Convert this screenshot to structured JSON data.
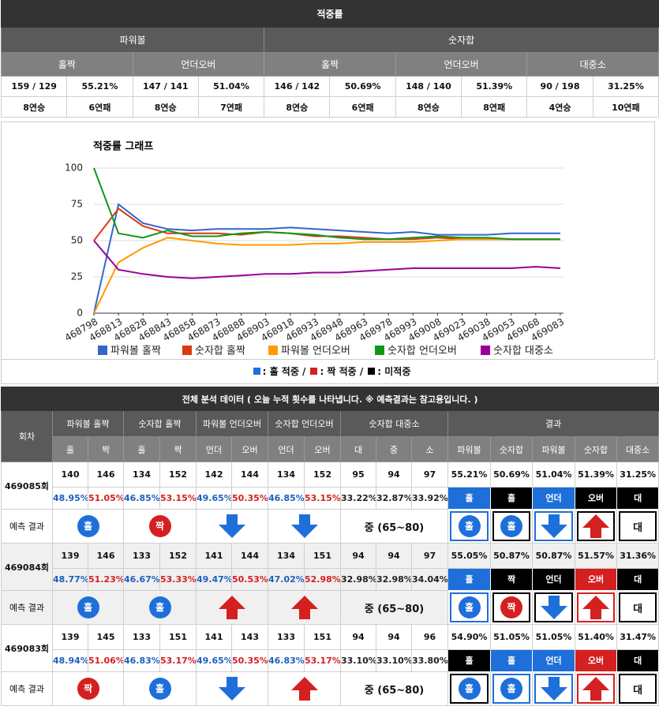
{
  "summary": {
    "title": "적중률",
    "groups": [
      "파워볼",
      "숫자합"
    ],
    "subgroups": [
      "홀짝",
      "언더오버",
      "홀짝",
      "언더오버",
      "대중소"
    ],
    "rows": [
      [
        "159 / 129",
        "55.21%",
        "147 / 141",
        "51.04%",
        "146 / 142",
        "50.69%",
        "148 / 140",
        "51.39%",
        "90 / 198",
        "31.25%"
      ],
      [
        "8연승",
        "6연패",
        "8연승",
        "7연패",
        "8연승",
        "6연패",
        "8연승",
        "8연패",
        "4연승",
        "10연패"
      ]
    ]
  },
  "chart_data": {
    "type": "line",
    "title": "적중률 그래프",
    "x": [
      468798,
      468813,
      468828,
      468843,
      468858,
      468873,
      468888,
      468903,
      468918,
      468933,
      468948,
      468963,
      468978,
      468993,
      469008,
      469023,
      469038,
      469053,
      469068,
      469083
    ],
    "xlim": [
      468798,
      469085
    ],
    "xticks": [
      468798,
      468813,
      468828,
      468843,
      468858,
      468873,
      468888,
      468903,
      468918,
      468933,
      468948,
      468963,
      468978,
      468993,
      469008,
      469023,
      469038,
      469053,
      469068,
      469083
    ],
    "ylim": [
      0,
      100
    ],
    "yticks": [
      0,
      25,
      50,
      75,
      100
    ],
    "grid": true,
    "series": [
      {
        "name": "파워볼 홀짝",
        "color": "#3366cc",
        "values": [
          0,
          75,
          62,
          58,
          57,
          58,
          58,
          58,
          59,
          58,
          57,
          56,
          55,
          56,
          54,
          54,
          54,
          55,
          55,
          55
        ]
      },
      {
        "name": "숫자합 홀짝",
        "color": "#dc3912",
        "values": [
          50,
          72,
          60,
          55,
          55,
          55,
          54,
          56,
          55,
          53,
          53,
          52,
          51,
          51,
          52,
          51,
          51,
          51,
          51,
          51
        ]
      },
      {
        "name": "파워볼 언더오버",
        "color": "#ff9900",
        "values": [
          0,
          35,
          45,
          52,
          50,
          48,
          47,
          47,
          47,
          48,
          48,
          49,
          49,
          49,
          50,
          51,
          51,
          51,
          51,
          51
        ]
      },
      {
        "name": "숫자합 언더오버",
        "color": "#109618",
        "values": [
          100,
          55,
          52,
          57,
          53,
          53,
          55,
          56,
          55,
          54,
          52,
          51,
          51,
          52,
          53,
          52,
          52,
          51,
          51,
          51
        ]
      },
      {
        "name": "숫자합 대중소",
        "color": "#990099",
        "values": [
          50,
          30,
          27,
          25,
          24,
          25,
          26,
          27,
          27,
          28,
          28,
          29,
          30,
          31,
          31,
          31,
          31,
          31,
          32,
          31
        ]
      }
    ]
  },
  "legend_key": [
    {
      "text": ": 홀 적중 /",
      "color": "#1e6fd9"
    },
    {
      "text": ": 짝 적중 /",
      "color": "#d42020"
    },
    {
      "text": ": 미적중",
      "color": "#000000"
    }
  ],
  "analysis": {
    "title": "전체 분석 데이터 ( 오늘 누적 횟수를 나타냅니다. ※ 예측결과는 참고용입니다. )",
    "round_header": "회차",
    "groups": [
      "파워볼 홀짝",
      "숫자합 홀짝",
      "파워볼 언더오버",
      "숫자합 언더오버",
      "숫자합 대중소"
    ],
    "subheaders": [
      "홀",
      "짝",
      "홀",
      "짝",
      "언더",
      "오버",
      "언더",
      "오버",
      "대",
      "중",
      "소"
    ],
    "result_header": "결과",
    "result_subheaders": [
      "파워볼",
      "숫자합",
      "파워볼",
      "숫자합",
      "대중소"
    ],
    "prediction_label": "예측 결과",
    "rounds": [
      {
        "round": "469085회",
        "counts": [
          140,
          146,
          134,
          152,
          142,
          144,
          134,
          152,
          95,
          94,
          97
        ],
        "percents": [
          "48.95%",
          "51.05%",
          "46.85%",
          "53.15%",
          "49.65%",
          "50.35%",
          "46.85%",
          "53.15%",
          "33.22%",
          "32.87%",
          "33.92%"
        ],
        "results": [
          "55.21%",
          "50.69%",
          "51.04%",
          "51.39%",
          "31.25%"
        ],
        "badges": [
          {
            "text": "홀",
            "color": "#1e6fd9"
          },
          {
            "text": "홀",
            "color": "#000000"
          },
          {
            "text": "언더",
            "color": "#1e6fd9"
          },
          {
            "text": "오버",
            "color": "#000000"
          },
          {
            "text": "대",
            "color": "#000000"
          }
        ],
        "predictions": [
          {
            "text": "홀",
            "color": "#1e6fd9"
          },
          {
            "text": "짝",
            "color": "#d42020"
          },
          {
            "icon": "down",
            "color": "#1e6fd9"
          },
          {
            "icon": "down",
            "color": "#1e6fd9"
          },
          {
            "text": "중 (65~80)"
          }
        ],
        "result_predictions": [
          {
            "text": "홀",
            "color": "#1e6fd9",
            "border": "#1e6fd9"
          },
          {
            "text": "홀",
            "color": "#1e6fd9",
            "border": "#000000"
          },
          {
            "icon": "down",
            "color": "#1e6fd9",
            "border": "#1e6fd9"
          },
          {
            "icon": "up",
            "color": "#d42020",
            "border": "#000000"
          },
          {
            "text": "대",
            "border": "#000000"
          }
        ]
      },
      {
        "round": "469084회",
        "counts": [
          139,
          146,
          133,
          152,
          141,
          144,
          134,
          151,
          94,
          94,
          97
        ],
        "percents": [
          "48.77%",
          "51.23%",
          "46.67%",
          "53.33%",
          "49.47%",
          "50.53%",
          "47.02%",
          "52.98%",
          "32.98%",
          "32.98%",
          "34.04%"
        ],
        "results": [
          "55.05%",
          "50.87%",
          "50.87%",
          "51.57%",
          "31.36%"
        ],
        "badges": [
          {
            "text": "홀",
            "color": "#1e6fd9"
          },
          {
            "text": "짝",
            "color": "#000000"
          },
          {
            "text": "언더",
            "color": "#000000"
          },
          {
            "text": "오버",
            "color": "#d42020"
          },
          {
            "text": "대",
            "color": "#000000"
          }
        ],
        "predictions": [
          {
            "text": "홀",
            "color": "#1e6fd9"
          },
          {
            "text": "홀",
            "color": "#1e6fd9"
          },
          {
            "icon": "up",
            "color": "#d42020"
          },
          {
            "icon": "up",
            "color": "#d42020"
          },
          {
            "text": "중 (65~80)"
          }
        ],
        "result_predictions": [
          {
            "text": "홀",
            "color": "#1e6fd9",
            "border": "#1e6fd9"
          },
          {
            "text": "짝",
            "color": "#d42020",
            "border": "#000000"
          },
          {
            "icon": "down",
            "color": "#1e6fd9",
            "border": "#000000"
          },
          {
            "icon": "up",
            "color": "#d42020",
            "border": "#d42020"
          },
          {
            "text": "대",
            "border": "#000000"
          }
        ]
      },
      {
        "round": "469083회",
        "counts": [
          139,
          145,
          133,
          151,
          141,
          143,
          133,
          151,
          94,
          94,
          96
        ],
        "percents": [
          "48.94%",
          "51.06%",
          "46.83%",
          "53.17%",
          "49.65%",
          "50.35%",
          "46.83%",
          "53.17%",
          "33.10%",
          "33.10%",
          "33.80%"
        ],
        "results": [
          "54.90%",
          "51.05%",
          "51.05%",
          "51.40%",
          "31.47%"
        ],
        "badges": [
          {
            "text": "홀",
            "color": "#000000"
          },
          {
            "text": "홀",
            "color": "#1e6fd9"
          },
          {
            "text": "언더",
            "color": "#1e6fd9"
          },
          {
            "text": "오버",
            "color": "#d42020"
          },
          {
            "text": "대",
            "color": "#000000"
          }
        ],
        "predictions": [
          {
            "text": "짝",
            "color": "#d42020"
          },
          {
            "text": "홀",
            "color": "#1e6fd9"
          },
          {
            "icon": "down",
            "color": "#1e6fd9"
          },
          {
            "icon": "up",
            "color": "#d42020"
          },
          {
            "text": "중 (65~80)"
          }
        ],
        "result_predictions": [
          {
            "text": "홀",
            "color": "#1e6fd9",
            "border": "#000000"
          },
          {
            "text": "홀",
            "color": "#1e6fd9",
            "border": "#1e6fd9"
          },
          {
            "icon": "down",
            "color": "#1e6fd9",
            "border": "#1e6fd9"
          },
          {
            "icon": "up",
            "color": "#d42020",
            "border": "#d42020"
          },
          {
            "text": "대",
            "border": "#000000"
          }
        ]
      }
    ]
  }
}
